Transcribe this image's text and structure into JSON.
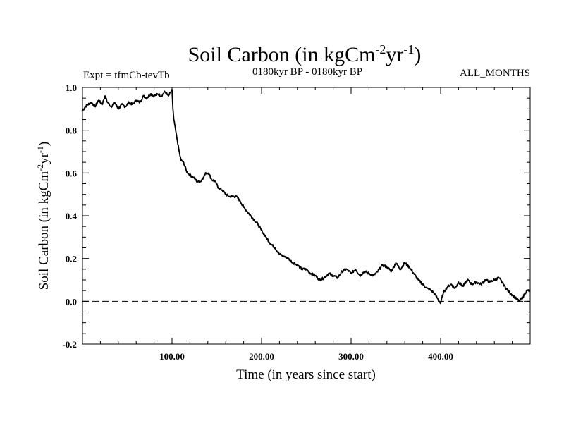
{
  "chart_data": {
    "type": "line",
    "title": {
      "main": "Soil Carbon (in kgCm",
      "sup1": "-2",
      "mid": "yr",
      "sup2": "-1",
      "end": ")"
    },
    "subtitle_left": "Expt = tfmCb-tevTb",
    "subtitle_center": "0180kyr BP - 0180kyr BP",
    "subtitle_right": "ALL_MONTHS",
    "xlabel": "Time (in years since start)",
    "ylabel": {
      "main": "Soil Carbon (in kgCm",
      "sup1": "-2",
      "mid": "yr",
      "sup2": "-1",
      "end": ")"
    },
    "xlim": [
      0,
      500
    ],
    "ylim": [
      -0.2,
      1.0
    ],
    "x_tick_labels": [
      "100.00",
      "200.00",
      "300.00",
      "400.00"
    ],
    "x_tick_values": [
      100,
      200,
      300,
      400
    ],
    "y_tick_labels": [
      "-0.2",
      "0.0",
      "0.2",
      "0.4",
      "0.6",
      "0.8",
      "1.0"
    ],
    "y_tick_values": [
      -0.2,
      0.0,
      0.2,
      0.4,
      0.6,
      0.8,
      1.0
    ],
    "reference_line": {
      "y": 0.0,
      "style": "dashed"
    },
    "series": [
      {
        "name": "Soil Carbon",
        "x": [
          0,
          3,
          6,
          10,
          14,
          18,
          22,
          25,
          28,
          32,
          36,
          40,
          44,
          48,
          52,
          56,
          60,
          64,
          68,
          72,
          76,
          80,
          84,
          88,
          92,
          96,
          99,
          100,
          101,
          102,
          104,
          106,
          108,
          110,
          113,
          116,
          120,
          124,
          128,
          132,
          135,
          138,
          141,
          144,
          148,
          152,
          156,
          160,
          164,
          168,
          172,
          176,
          180,
          184,
          188,
          192,
          196,
          200,
          205,
          210,
          215,
          220,
          225,
          230,
          235,
          240,
          245,
          250,
          255,
          260,
          265,
          270,
          275,
          280,
          285,
          290,
          295,
          300,
          305,
          310,
          315,
          320,
          325,
          330,
          335,
          340,
          345,
          350,
          355,
          360,
          365,
          370,
          375,
          380,
          385,
          390,
          394,
          397,
          400,
          403,
          408,
          412,
          416,
          420,
          425,
          430,
          435,
          440,
          445,
          450,
          455,
          460,
          465,
          470,
          475,
          480,
          485,
          488,
          492,
          496,
          500
        ],
        "values": [
          0.89,
          0.91,
          0.92,
          0.93,
          0.91,
          0.94,
          0.92,
          0.96,
          0.93,
          0.91,
          0.93,
          0.9,
          0.92,
          0.91,
          0.93,
          0.92,
          0.94,
          0.93,
          0.96,
          0.95,
          0.97,
          0.96,
          0.97,
          0.96,
          0.98,
          0.96,
          0.98,
          0.99,
          0.9,
          0.85,
          0.8,
          0.75,
          0.7,
          0.66,
          0.65,
          0.61,
          0.59,
          0.58,
          0.56,
          0.56,
          0.58,
          0.6,
          0.6,
          0.57,
          0.56,
          0.53,
          0.52,
          0.5,
          0.49,
          0.49,
          0.49,
          0.47,
          0.44,
          0.42,
          0.4,
          0.38,
          0.36,
          0.33,
          0.3,
          0.27,
          0.25,
          0.22,
          0.21,
          0.2,
          0.18,
          0.17,
          0.15,
          0.15,
          0.13,
          0.12,
          0.1,
          0.11,
          0.13,
          0.12,
          0.11,
          0.14,
          0.15,
          0.13,
          0.15,
          0.12,
          0.14,
          0.13,
          0.12,
          0.14,
          0.17,
          0.16,
          0.14,
          0.18,
          0.15,
          0.18,
          0.16,
          0.13,
          0.1,
          0.08,
          0.06,
          0.05,
          0.03,
          0.01,
          -0.01,
          0.04,
          0.07,
          0.08,
          0.06,
          0.09,
          0.07,
          0.1,
          0.08,
          0.09,
          0.08,
          0.1,
          0.09,
          0.1,
          0.11,
          0.08,
          0.05,
          0.03,
          0.01,
          0.0,
          0.02,
          0.05,
          0.05
        ]
      }
    ]
  }
}
